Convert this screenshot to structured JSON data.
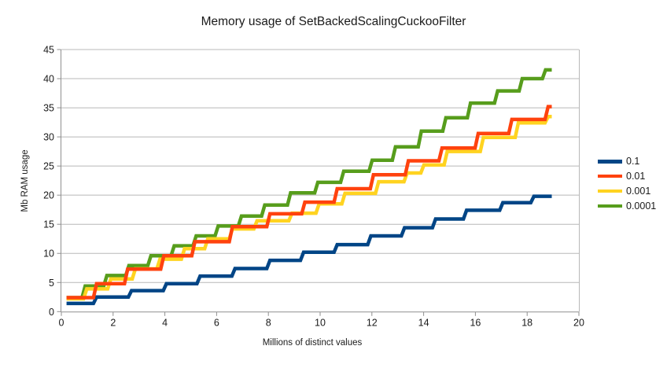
{
  "chart_data": {
    "type": "line",
    "line_style": "step-after",
    "title": "Memory usage of SetBackedScalingCuckooFilter",
    "xlabel": "Millions of distinct values",
    "ylabel": "Mb RAM usage",
    "xlim": [
      0,
      20
    ],
    "ylim": [
      0,
      45
    ],
    "xticks": [
      0,
      2,
      4,
      6,
      8,
      10,
      12,
      14,
      16,
      18,
      20
    ],
    "yticks": [
      0,
      5,
      10,
      15,
      20,
      25,
      30,
      35,
      40,
      45
    ],
    "grid": "horizontal",
    "legend_position": "right",
    "series": [
      {
        "name": "0.1",
        "color": "#004586",
        "end_x": 18.95,
        "points": [
          [
            0.2,
            1.4
          ],
          [
            1.3,
            2.5
          ],
          [
            2.65,
            3.6
          ],
          [
            4.0,
            4.8
          ],
          [
            5.3,
            6.1
          ],
          [
            6.65,
            7.4
          ],
          [
            8.0,
            8.8
          ],
          [
            9.3,
            10.2
          ],
          [
            10.6,
            11.5
          ],
          [
            11.9,
            13.0
          ],
          [
            13.2,
            14.4
          ],
          [
            14.4,
            15.9
          ],
          [
            15.6,
            17.4
          ],
          [
            17.0,
            18.7
          ],
          [
            18.2,
            19.8
          ]
        ]
      },
      {
        "name": "0.01",
        "color": "#FF420E",
        "end_x": 18.95,
        "points": [
          [
            0.2,
            2.4
          ],
          [
            1.3,
            4.8
          ],
          [
            2.5,
            7.3
          ],
          [
            3.9,
            9.6
          ],
          [
            5.1,
            12.0
          ],
          [
            6.55,
            14.6
          ],
          [
            8.0,
            16.8
          ],
          [
            9.35,
            18.8
          ],
          [
            10.6,
            21.1
          ],
          [
            12.0,
            23.5
          ],
          [
            13.35,
            25.9
          ],
          [
            14.65,
            28.1
          ],
          [
            16.05,
            30.6
          ],
          [
            17.35,
            33.0
          ],
          [
            18.75,
            35.2
          ]
        ]
      },
      {
        "name": "0.001",
        "color": "#FFD320",
        "end_x": 18.95,
        "points": [
          [
            0.2,
            2.2
          ],
          [
            0.92,
            3.9
          ],
          [
            1.85,
            5.6
          ],
          [
            2.8,
            7.35
          ],
          [
            3.75,
            9.0
          ],
          [
            4.7,
            10.8
          ],
          [
            5.6,
            12.5
          ],
          [
            6.55,
            14.2
          ],
          [
            7.5,
            15.6
          ],
          [
            8.85,
            16.9
          ],
          [
            9.9,
            18.5
          ],
          [
            10.9,
            20.3
          ],
          [
            12.2,
            22.3
          ],
          [
            13.3,
            23.8
          ],
          [
            13.95,
            25.2
          ],
          [
            14.85,
            27.5
          ],
          [
            16.25,
            29.9
          ],
          [
            17.6,
            32.4
          ],
          [
            18.75,
            33.5
          ]
        ]
      },
      {
        "name": "0.0001",
        "color": "#579D1C",
        "end_x": 18.95,
        "points": [
          [
            0.2,
            2.4
          ],
          [
            0.86,
            4.4
          ],
          [
            1.7,
            6.2
          ],
          [
            2.55,
            7.9
          ],
          [
            3.4,
            9.6
          ],
          [
            4.3,
            11.3
          ],
          [
            5.15,
            13.0
          ],
          [
            6.0,
            14.7
          ],
          [
            6.9,
            16.4
          ],
          [
            7.8,
            18.3
          ],
          [
            8.8,
            20.4
          ],
          [
            9.85,
            22.2
          ],
          [
            10.85,
            24.1
          ],
          [
            11.95,
            26.0
          ],
          [
            12.85,
            28.3
          ],
          [
            13.85,
            31.0
          ],
          [
            14.8,
            33.3
          ],
          [
            15.75,
            35.8
          ],
          [
            16.8,
            37.9
          ],
          [
            17.75,
            40.0
          ],
          [
            18.65,
            41.5
          ]
        ]
      }
    ]
  }
}
